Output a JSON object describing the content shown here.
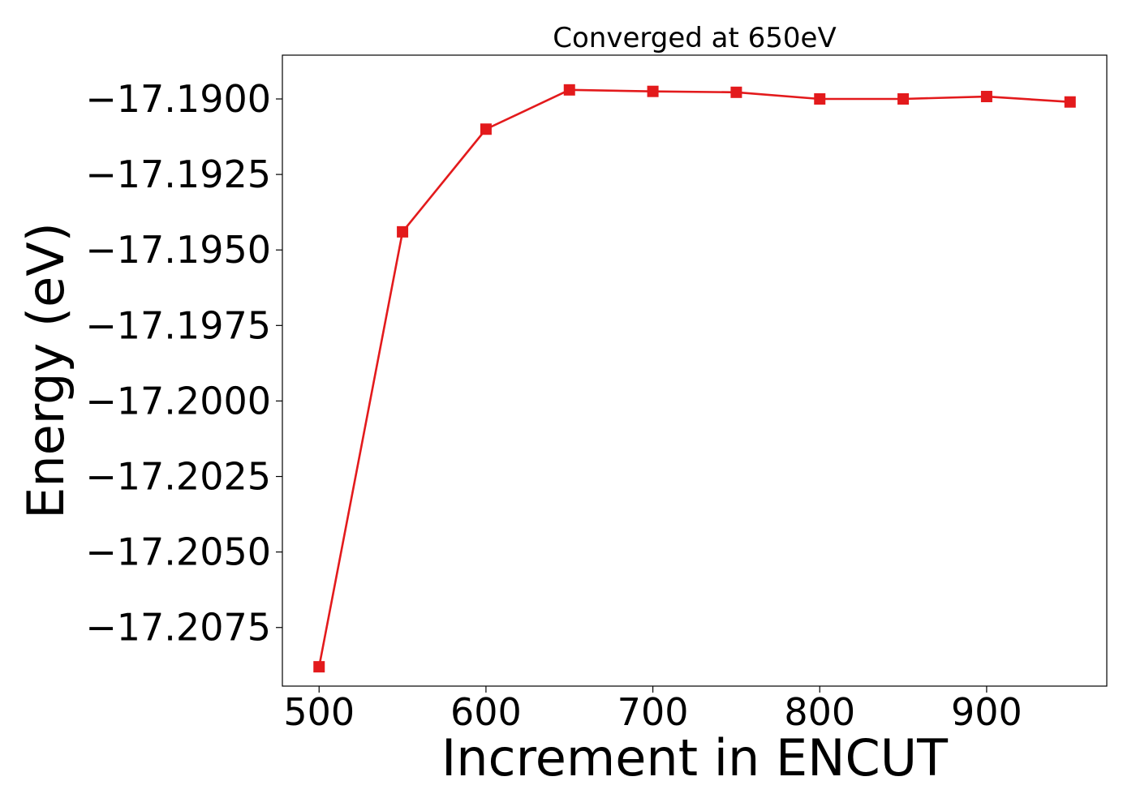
{
  "chart_data": {
    "type": "line",
    "title": "Converged at 650eV",
    "xlabel": "Increment in ENCUT",
    "ylabel": "Energy (eV)",
    "x": [
      500,
      550,
      600,
      650,
      700,
      750,
      800,
      850,
      900,
      950
    ],
    "series": [
      {
        "name": "",
        "color": "#e31a1c",
        "marker": "square",
        "values": [
          -17.2088,
          -17.1944,
          -17.191,
          -17.1897,
          -17.18975,
          -17.18978,
          -17.19,
          -17.19,
          -17.18992,
          -17.1901
        ]
      }
    ],
    "xlim": [
      478,
      972
    ],
    "ylim": [
      -17.20944,
      -17.18855
    ],
    "xticks": [
      500,
      600,
      700,
      800,
      900
    ],
    "xtick_labels": [
      "500",
      "600",
      "700",
      "800",
      "900"
    ],
    "yticks": [
      -17.19,
      -17.1925,
      -17.195,
      -17.1975,
      -17.2,
      -17.2025,
      -17.205,
      -17.2075
    ],
    "ytick_labels": [
      "−17.1900",
      "−17.1925",
      "−17.1950",
      "−17.1975",
      "−17.2000",
      "−17.2025",
      "−17.2050",
      "−17.2075"
    ],
    "grid": false,
    "legend": false
  }
}
